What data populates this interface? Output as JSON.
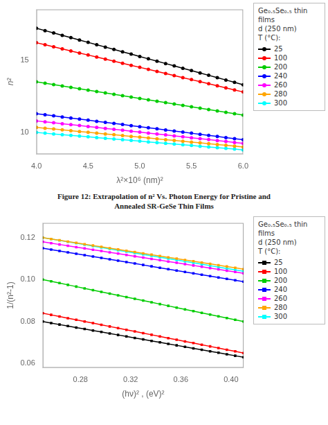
{
  "caption": "Figure 12: Extrapolation of n² Vs. Photon Energy for Pristine and\nAnnealed SR-GeSe Thin Films",
  "chart_data": [
    {
      "type": "line",
      "xlabel": "λ²×10⁶ (nm)²",
      "ylabel": "n²",
      "legend": "upper right",
      "legend_title": "Ge₀.₅Se₀.₅ thin films\nd (250 nm)\nT (°C):",
      "grid": false,
      "marker": "circle",
      "line_style": "solid",
      "xlim": [
        4.0,
        6.0
      ],
      "ylim": [
        8.5,
        18.5
      ],
      "xticks": [
        {
          "value": 4.0,
          "label": "4.0"
        },
        4.5,
        {
          "value": 5.0,
          "label": "5.0"
        },
        5.5,
        {
          "value": 6.0,
          "label": "6.0"
        }
      ],
      "yticks": [
        10,
        15
      ],
      "x": [
        4.0,
        4.0833,
        4.1667,
        4.25,
        4.3333,
        4.4167,
        4.5,
        4.5833,
        4.6667,
        4.75,
        4.8333,
        4.9167,
        5.0,
        5.0833,
        5.1667,
        5.25,
        5.3333,
        5.4167,
        5.5,
        5.5833,
        5.6667,
        5.75,
        5.8333,
        5.9167,
        6.0
      ],
      "series": [
        {
          "name": "25",
          "color": "black",
          "values": [
            17.2,
            17.0375,
            16.875,
            16.7125,
            16.55,
            16.3875,
            16.225,
            16.0625,
            15.9,
            15.7375,
            15.575,
            15.4125,
            15.25,
            15.0875,
            14.925,
            14.7625,
            14.6,
            14.4375,
            14.275,
            14.1125,
            13.95,
            13.7875,
            13.625,
            13.4625,
            13.3
          ]
        },
        {
          "name": "100",
          "color": "red",
          "values": [
            16.2,
            16.0583,
            15.9167,
            15.775,
            15.6333,
            15.4917,
            15.35,
            15.2083,
            15.0667,
            14.925,
            14.7833,
            14.6417,
            14.5,
            14.3583,
            14.2167,
            14.075,
            13.9333,
            13.7917,
            13.65,
            13.5083,
            13.3667,
            13.225,
            13.0833,
            12.9417,
            12.8
          ]
        },
        {
          "name": "200",
          "color": "#00CC00",
          "values": [
            13.5,
            13.4042,
            13.3083,
            13.2125,
            13.1167,
            13.0208,
            12.925,
            12.8292,
            12.7333,
            12.6375,
            12.5417,
            12.4458,
            12.35,
            12.2542,
            12.1583,
            12.0625,
            11.9667,
            11.8708,
            11.775,
            11.6792,
            11.5833,
            11.4875,
            11.3917,
            11.2958,
            11.2
          ]
        },
        {
          "name": "240",
          "color": "blue",
          "values": [
            11.3,
            11.225,
            11.15,
            11.075,
            11.0,
            10.925,
            10.85,
            10.775,
            10.7,
            10.625,
            10.55,
            10.475,
            10.4,
            10.325,
            10.25,
            10.175,
            10.1,
            10.025,
            9.95,
            9.875,
            9.8,
            9.725,
            9.65,
            9.575,
            9.5
          ]
        },
        {
          "name": "260",
          "color": "magenta",
          "values": [
            10.8,
            10.7354,
            10.6708,
            10.6063,
            10.5417,
            10.4771,
            10.4125,
            10.3479,
            10.2833,
            10.2188,
            10.1542,
            10.0896,
            10.025,
            9.9604,
            9.8958,
            9.8313,
            9.7667,
            9.7021,
            9.6375,
            9.5729,
            9.5083,
            9.4438,
            9.3792,
            9.3146,
            9.25
          ]
        },
        {
          "name": "280",
          "color": "orange",
          "values": [
            10.35,
            10.29375,
            10.2375,
            10.18125,
            10.125,
            10.06875,
            10.0125,
            9.95625,
            9.9,
            9.84375,
            9.7875,
            9.73125,
            9.675,
            9.61875,
            9.5625,
            9.50625,
            9.45,
            9.39375,
            9.3375,
            9.28125,
            9.225,
            9.16875,
            9.1125,
            9.05625,
            9.0
          ]
        },
        {
          "name": "300",
          "color": "cyan",
          "values": [
            10.0,
            9.95,
            9.9,
            9.85,
            9.8,
            9.75,
            9.7,
            9.65,
            9.6,
            9.55,
            9.5,
            9.45,
            9.4,
            9.35,
            9.3,
            9.25,
            9.2,
            9.15,
            9.1,
            9.05,
            9.0,
            8.95,
            8.9,
            8.85,
            8.8
          ]
        }
      ]
    },
    {
      "type": "line",
      "xlabel": "(hν)² , (eV)²",
      "ylabel": "1/(n²-1)",
      "legend": "upper right",
      "legend_title": "Ge₀.₅Se₀.₅ thin films\nd (250 nm)\nT (°C):",
      "grid": false,
      "marker": "square",
      "line_style": "solid",
      "xlim": [
        0.25,
        0.41
      ],
      "ylim": [
        0.058,
        0.127
      ],
      "xticks": [
        0.28,
        0.32,
        0.36,
        {
          "value": 0.4,
          "label": "0.40"
        }
      ],
      "yticks": [
        0.06,
        0.08,
        {
          "value": 0.1,
          "label": "0.10"
        },
        0.12
      ],
      "x": [
        0.25,
        0.256667,
        0.263333,
        0.27,
        0.276667,
        0.283333,
        0.29,
        0.296667,
        0.303333,
        0.31,
        0.316667,
        0.323333,
        0.33,
        0.336667,
        0.343333,
        0.35,
        0.356667,
        0.363333,
        0.37,
        0.376667,
        0.383333,
        0.39,
        0.396667,
        0.403333,
        0.41
      ],
      "series": [
        {
          "name": "25",
          "color": "black",
          "values": [
            0.08,
            0.079292,
            0.078583,
            0.077875,
            0.077167,
            0.076458,
            0.07575,
            0.075042,
            0.074333,
            0.073625,
            0.072917,
            0.072208,
            0.0715,
            0.070792,
            0.070083,
            0.069375,
            0.068667,
            0.067958,
            0.06725,
            0.066542,
            0.065833,
            0.065125,
            0.064417,
            0.063708,
            0.063
          ]
        },
        {
          "name": "100",
          "color": "red",
          "values": [
            0.084,
            0.083208,
            0.082417,
            0.081625,
            0.080833,
            0.080042,
            0.07925,
            0.078458,
            0.077667,
            0.076875,
            0.076083,
            0.075292,
            0.0745,
            0.073708,
            0.072917,
            0.072125,
            0.071333,
            0.070542,
            0.06975,
            0.068958,
            0.068167,
            0.067375,
            0.066583,
            0.065792,
            0.065
          ]
        },
        {
          "name": "200",
          "color": "#00CC00",
          "values": [
            0.1,
            0.099167,
            0.098333,
            0.0975,
            0.096667,
            0.095833,
            0.095,
            0.094167,
            0.093333,
            0.0925,
            0.091667,
            0.090833,
            0.09,
            0.089167,
            0.088333,
            0.0875,
            0.086667,
            0.085833,
            0.085,
            0.084167,
            0.083333,
            0.0825,
            0.081667,
            0.080833,
            0.08
          ]
        },
        {
          "name": "240",
          "color": "blue",
          "values": [
            0.115,
            0.114333,
            0.113667,
            0.113,
            0.112333,
            0.111667,
            0.111,
            0.110333,
            0.109667,
            0.109,
            0.108333,
            0.107667,
            0.107,
            0.106333,
            0.105667,
            0.105,
            0.104333,
            0.103667,
            0.103,
            0.102333,
            0.101667,
            0.101,
            0.100333,
            0.099667,
            0.099
          ]
        },
        {
          "name": "260",
          "color": "magenta",
          "values": [
            0.118,
            0.117375,
            0.11675,
            0.116125,
            0.1155,
            0.114875,
            0.11425,
            0.113625,
            0.113,
            0.112375,
            0.11175,
            0.111125,
            0.1105,
            0.109875,
            0.10925,
            0.108625,
            0.108,
            0.107375,
            0.10675,
            0.106125,
            0.1055,
            0.104875,
            0.10425,
            0.103625,
            0.103
          ]
        },
        {
          "name": "280",
          "color": "orange",
          "values": [
            0.12,
            0.119375,
            0.11875,
            0.118125,
            0.1175,
            0.116875,
            0.11625,
            0.115625,
            0.115,
            0.114375,
            0.11375,
            0.113125,
            0.1125,
            0.111875,
            0.11125,
            0.110625,
            0.11,
            0.109375,
            0.10875,
            0.108125,
            0.1075,
            0.106875,
            0.10625,
            0.105625,
            0.105
          ]
        },
        {
          "name": "300",
          "color": "cyan",
          "values": [
            0.12,
            0.119333,
            0.118667,
            0.118,
            0.117333,
            0.116667,
            0.116,
            0.115333,
            0.114667,
            0.114,
            0.113333,
            0.112667,
            0.112,
            0.111333,
            0.110667,
            0.11,
            0.109333,
            0.108667,
            0.108,
            0.107333,
            0.106667,
            0.106,
            0.105333,
            0.104667,
            0.104
          ]
        }
      ]
    }
  ]
}
